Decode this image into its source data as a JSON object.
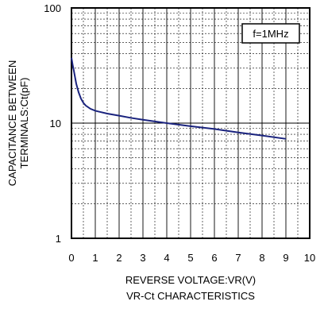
{
  "chart_data": {
    "type": "line",
    "title": "VR-Ct CHARACTERISTICS",
    "xlabel": "REVERSE VOLTAGE:VR(V)",
    "ylabel_lines": [
      "CAPACITANCE BETWEEN",
      "TERMINALS:Ct(pF)"
    ],
    "annotation": "f=1MHz",
    "xlim": [
      0,
      10
    ],
    "ylim": [
      1,
      100
    ],
    "y_scale": "log",
    "x_ticks": [
      "0",
      "1",
      "2",
      "3",
      "4",
      "5",
      "6",
      "7",
      "8",
      "9",
      "10"
    ],
    "y_ticks": [
      "1",
      "10",
      "100"
    ],
    "grid": true,
    "series": [
      {
        "color": "#1a237e",
        "x": [
          0,
          0.05,
          0.1,
          0.2,
          0.3,
          0.4,
          0.5,
          0.6,
          0.8,
          1.0,
          1.5,
          2,
          2.5,
          3,
          4,
          5,
          6,
          7,
          8,
          9
        ],
        "y": [
          37,
          32,
          28.5,
          22,
          18.5,
          16.3,
          15,
          14.2,
          13.3,
          12.8,
          12.1,
          11.6,
          11.1,
          10.7,
          10,
          9.4,
          8.9,
          8.3,
          7.8,
          7.3
        ]
      }
    ]
  }
}
